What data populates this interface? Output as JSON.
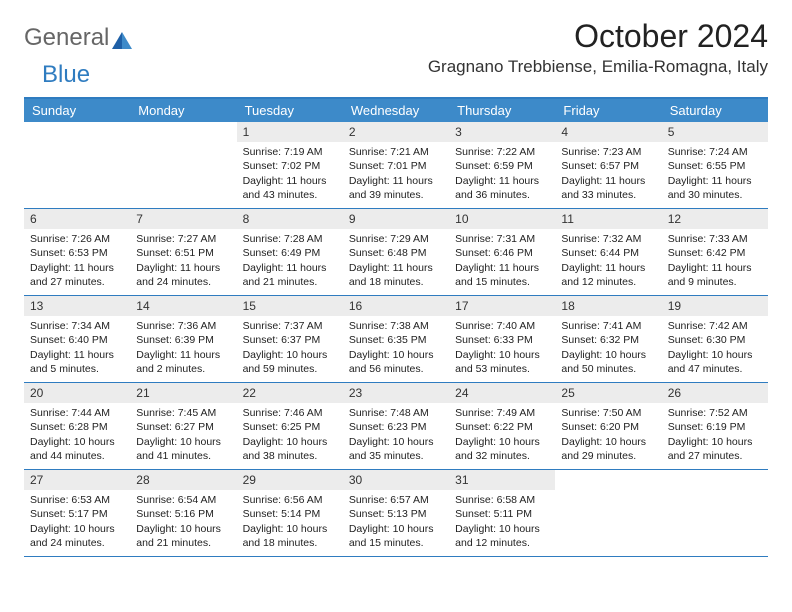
{
  "brand": {
    "part1": "General",
    "part2": "Blue"
  },
  "title": "October 2024",
  "location": "Gragnano Trebbiense, Emilia-Romagna, Italy",
  "colors": {
    "header_bar": "#3d8ac9",
    "rule": "#2f7cc0",
    "daynum_bg": "#ececec",
    "text": "#222222",
    "bg": "#ffffff"
  },
  "typography": {
    "title_fontsize": 32,
    "location_fontsize": 17,
    "dayhead_fontsize": 13,
    "cell_fontsize": 10.5
  },
  "day_names": [
    "Sunday",
    "Monday",
    "Tuesday",
    "Wednesday",
    "Thursday",
    "Friday",
    "Saturday"
  ],
  "weeks": [
    [
      null,
      null,
      {
        "n": "1",
        "sr": "Sunrise: 7:19 AM",
        "ss": "Sunset: 7:02 PM",
        "dl": "Daylight: 11 hours and 43 minutes."
      },
      {
        "n": "2",
        "sr": "Sunrise: 7:21 AM",
        "ss": "Sunset: 7:01 PM",
        "dl": "Daylight: 11 hours and 39 minutes."
      },
      {
        "n": "3",
        "sr": "Sunrise: 7:22 AM",
        "ss": "Sunset: 6:59 PM",
        "dl": "Daylight: 11 hours and 36 minutes."
      },
      {
        "n": "4",
        "sr": "Sunrise: 7:23 AM",
        "ss": "Sunset: 6:57 PM",
        "dl": "Daylight: 11 hours and 33 minutes."
      },
      {
        "n": "5",
        "sr": "Sunrise: 7:24 AM",
        "ss": "Sunset: 6:55 PM",
        "dl": "Daylight: 11 hours and 30 minutes."
      }
    ],
    [
      {
        "n": "6",
        "sr": "Sunrise: 7:26 AM",
        "ss": "Sunset: 6:53 PM",
        "dl": "Daylight: 11 hours and 27 minutes."
      },
      {
        "n": "7",
        "sr": "Sunrise: 7:27 AM",
        "ss": "Sunset: 6:51 PM",
        "dl": "Daylight: 11 hours and 24 minutes."
      },
      {
        "n": "8",
        "sr": "Sunrise: 7:28 AM",
        "ss": "Sunset: 6:49 PM",
        "dl": "Daylight: 11 hours and 21 minutes."
      },
      {
        "n": "9",
        "sr": "Sunrise: 7:29 AM",
        "ss": "Sunset: 6:48 PM",
        "dl": "Daylight: 11 hours and 18 minutes."
      },
      {
        "n": "10",
        "sr": "Sunrise: 7:31 AM",
        "ss": "Sunset: 6:46 PM",
        "dl": "Daylight: 11 hours and 15 minutes."
      },
      {
        "n": "11",
        "sr": "Sunrise: 7:32 AM",
        "ss": "Sunset: 6:44 PM",
        "dl": "Daylight: 11 hours and 12 minutes."
      },
      {
        "n": "12",
        "sr": "Sunrise: 7:33 AM",
        "ss": "Sunset: 6:42 PM",
        "dl": "Daylight: 11 hours and 9 minutes."
      }
    ],
    [
      {
        "n": "13",
        "sr": "Sunrise: 7:34 AM",
        "ss": "Sunset: 6:40 PM",
        "dl": "Daylight: 11 hours and 5 minutes."
      },
      {
        "n": "14",
        "sr": "Sunrise: 7:36 AM",
        "ss": "Sunset: 6:39 PM",
        "dl": "Daylight: 11 hours and 2 minutes."
      },
      {
        "n": "15",
        "sr": "Sunrise: 7:37 AM",
        "ss": "Sunset: 6:37 PM",
        "dl": "Daylight: 10 hours and 59 minutes."
      },
      {
        "n": "16",
        "sr": "Sunrise: 7:38 AM",
        "ss": "Sunset: 6:35 PM",
        "dl": "Daylight: 10 hours and 56 minutes."
      },
      {
        "n": "17",
        "sr": "Sunrise: 7:40 AM",
        "ss": "Sunset: 6:33 PM",
        "dl": "Daylight: 10 hours and 53 minutes."
      },
      {
        "n": "18",
        "sr": "Sunrise: 7:41 AM",
        "ss": "Sunset: 6:32 PM",
        "dl": "Daylight: 10 hours and 50 minutes."
      },
      {
        "n": "19",
        "sr": "Sunrise: 7:42 AM",
        "ss": "Sunset: 6:30 PM",
        "dl": "Daylight: 10 hours and 47 minutes."
      }
    ],
    [
      {
        "n": "20",
        "sr": "Sunrise: 7:44 AM",
        "ss": "Sunset: 6:28 PM",
        "dl": "Daylight: 10 hours and 44 minutes."
      },
      {
        "n": "21",
        "sr": "Sunrise: 7:45 AM",
        "ss": "Sunset: 6:27 PM",
        "dl": "Daylight: 10 hours and 41 minutes."
      },
      {
        "n": "22",
        "sr": "Sunrise: 7:46 AM",
        "ss": "Sunset: 6:25 PM",
        "dl": "Daylight: 10 hours and 38 minutes."
      },
      {
        "n": "23",
        "sr": "Sunrise: 7:48 AM",
        "ss": "Sunset: 6:23 PM",
        "dl": "Daylight: 10 hours and 35 minutes."
      },
      {
        "n": "24",
        "sr": "Sunrise: 7:49 AM",
        "ss": "Sunset: 6:22 PM",
        "dl": "Daylight: 10 hours and 32 minutes."
      },
      {
        "n": "25",
        "sr": "Sunrise: 7:50 AM",
        "ss": "Sunset: 6:20 PM",
        "dl": "Daylight: 10 hours and 29 minutes."
      },
      {
        "n": "26",
        "sr": "Sunrise: 7:52 AM",
        "ss": "Sunset: 6:19 PM",
        "dl": "Daylight: 10 hours and 27 minutes."
      }
    ],
    [
      {
        "n": "27",
        "sr": "Sunrise: 6:53 AM",
        "ss": "Sunset: 5:17 PM",
        "dl": "Daylight: 10 hours and 24 minutes."
      },
      {
        "n": "28",
        "sr": "Sunrise: 6:54 AM",
        "ss": "Sunset: 5:16 PM",
        "dl": "Daylight: 10 hours and 21 minutes."
      },
      {
        "n": "29",
        "sr": "Sunrise: 6:56 AM",
        "ss": "Sunset: 5:14 PM",
        "dl": "Daylight: 10 hours and 18 minutes."
      },
      {
        "n": "30",
        "sr": "Sunrise: 6:57 AM",
        "ss": "Sunset: 5:13 PM",
        "dl": "Daylight: 10 hours and 15 minutes."
      },
      {
        "n": "31",
        "sr": "Sunrise: 6:58 AM",
        "ss": "Sunset: 5:11 PM",
        "dl": "Daylight: 10 hours and 12 minutes."
      },
      null,
      null
    ]
  ]
}
